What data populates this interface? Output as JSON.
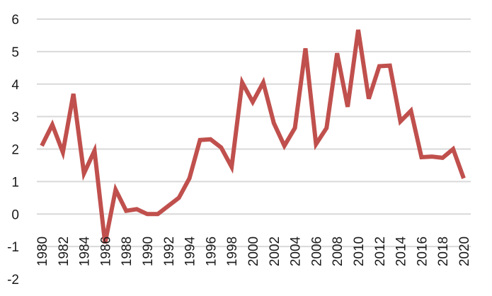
{
  "chart_data": {
    "type": "line",
    "title": "",
    "xlabel": "",
    "ylabel": "",
    "ylim": [
      -2,
      6
    ],
    "yticks": [
      "-2",
      "-1",
      "0",
      "1",
      "2",
      "3",
      "4",
      "5",
      "6"
    ],
    "xlim": [
      1980,
      2020
    ],
    "xticks": [
      "1980",
      "1982",
      "1984",
      "1986",
      "1988",
      "1990",
      "1992",
      "1994",
      "1996",
      "1998",
      "2000",
      "2002",
      "2004",
      "2006",
      "2008",
      "2010",
      "2012",
      "2014",
      "2016",
      "2018",
      "2020"
    ],
    "grid": true,
    "legend": "none",
    "series_color": "#c0504d",
    "series": [
      {
        "x": [
          1980,
          1981,
          1982,
          1983,
          1984,
          1985,
          1986,
          1987,
          1988,
          1989,
          1990,
          1991,
          1992,
          1993,
          1994,
          1995,
          1996,
          1997,
          1998,
          1999,
          2000,
          2001,
          2002,
          2003,
          2004,
          2005,
          2006,
          2007,
          2008,
          2009,
          2010,
          2011,
          2012,
          2013,
          2014,
          2015,
          2016,
          2017,
          2018,
          2019,
          2020
        ],
        "values": [
          2.1,
          2.75,
          1.9,
          3.7,
          1.25,
          1.95,
          -0.9,
          0.75,
          0.1,
          0.15,
          0.0,
          0.0,
          0.25,
          0.5,
          1.1,
          2.28,
          2.3,
          2.05,
          1.45,
          4.05,
          3.45,
          4.05,
          2.8,
          2.1,
          2.65,
          5.1,
          2.15,
          2.65,
          4.95,
          3.3,
          5.67,
          3.55,
          4.55,
          4.57,
          2.85,
          3.18,
          1.75,
          1.77,
          1.73,
          2.0,
          1.1
        ]
      }
    ]
  }
}
